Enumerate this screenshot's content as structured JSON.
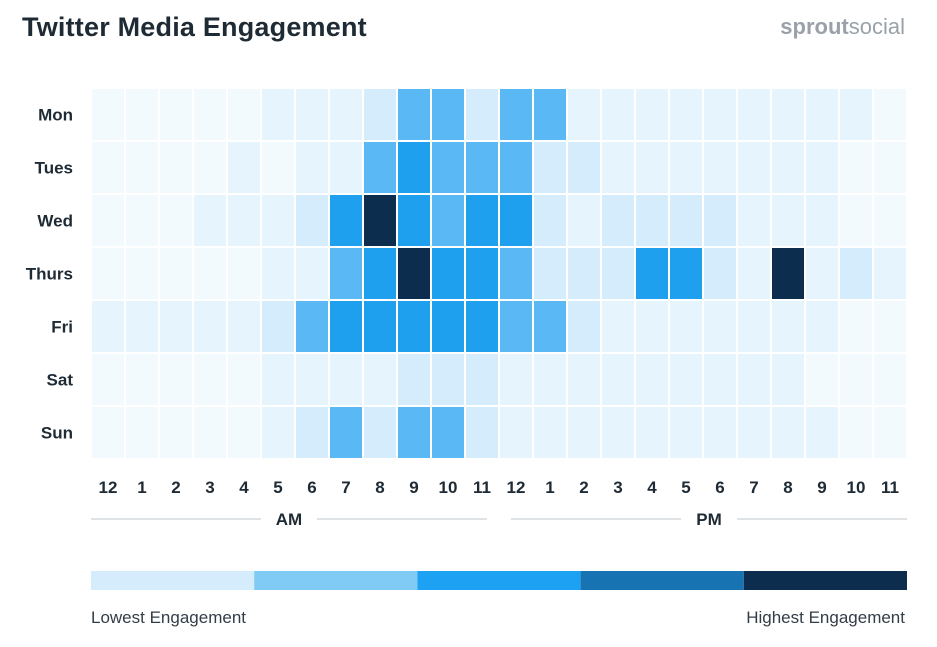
{
  "title": "Twitter Media Engagement",
  "brand": {
    "bold": "sprout",
    "light": "social"
  },
  "chart_data": {
    "type": "heatmap",
    "rows": [
      "Mon",
      "Tues",
      "Wed",
      "Thurs",
      "Fri",
      "Sat",
      "Sun"
    ],
    "columns": [
      "12",
      "1",
      "2",
      "3",
      "4",
      "5",
      "6",
      "7",
      "8",
      "9",
      "10",
      "11",
      "12",
      "1",
      "2",
      "3",
      "4",
      "5",
      "6",
      "7",
      "8",
      "9",
      "10",
      "11"
    ],
    "column_groups": [
      {
        "label": "AM",
        "span": 12
      },
      {
        "label": "PM",
        "span": 12
      }
    ],
    "values": [
      [
        0.0,
        0.0,
        0.0,
        0.0,
        0.2,
        0.4,
        0.7,
        0.7,
        1.3,
        2.0,
        2.0,
        1.3,
        2.0,
        2.0,
        0.7,
        0.7,
        0.7,
        0.4,
        0.4,
        0.4,
        0.4,
        0.7,
        0.4,
        0.2
      ],
      [
        0.2,
        0.2,
        0.2,
        0.2,
        0.4,
        0.2,
        0.4,
        0.7,
        2.0,
        3.0,
        2.0,
        2.0,
        2.0,
        1.3,
        1.3,
        0.7,
        0.7,
        0.7,
        0.4,
        0.4,
        0.4,
        0.4,
        0.2,
        0.2
      ],
      [
        0.2,
        0.2,
        0.2,
        0.4,
        0.4,
        0.7,
        1.3,
        3.0,
        4.0,
        3.0,
        2.0,
        3.0,
        3.0,
        1.3,
        0.7,
        1.3,
        1.3,
        1.3,
        1.3,
        0.7,
        0.7,
        0.7,
        0.2,
        0.2
      ],
      [
        0.2,
        0.2,
        0.2,
        0.2,
        0.2,
        0.4,
        0.7,
        2.0,
        3.0,
        4.0,
        3.0,
        3.0,
        2.0,
        1.3,
        1.3,
        1.3,
        3.0,
        3.0,
        1.3,
        0.7,
        4.0,
        0.4,
        1.3,
        0.7
      ],
      [
        0.7,
        0.7,
        0.7,
        0.7,
        0.7,
        1.3,
        2.0,
        3.0,
        3.0,
        3.0,
        3.0,
        3.0,
        2.0,
        2.0,
        1.3,
        0.7,
        0.7,
        0.4,
        0.4,
        0.4,
        0.4,
        0.4,
        0.0,
        0.0
      ],
      [
        0.2,
        0.2,
        0.0,
        0.2,
        0.2,
        0.4,
        0.4,
        0.4,
        0.4,
        1.3,
        1.3,
        1.3,
        0.7,
        0.7,
        0.7,
        0.7,
        0.4,
        0.4,
        0.4,
        0.4,
        0.4,
        0.2,
        0.2,
        0.2
      ],
      [
        0.2,
        0.2,
        0.2,
        0.2,
        0.2,
        0.4,
        1.3,
        2.0,
        1.3,
        2.0,
        2.0,
        1.3,
        0.7,
        0.7,
        0.7,
        0.7,
        0.4,
        0.4,
        0.4,
        0.4,
        0.4,
        0.4,
        0.0,
        0.0
      ]
    ],
    "scale_min": 0,
    "scale_max": 4,
    "color_stops": [
      "#f2fafe",
      "#e5f4fd",
      "#d4ecfb",
      "#a6d8f8",
      "#5ab9f5",
      "#1ea0ef",
      "#1873b2",
      "#0c2d4d"
    ],
    "legend_colors": [
      "#d4ecfb",
      "#7fcbf6",
      "#1da1f2",
      "#1873b2",
      "#0c2d4d"
    ],
    "legend_low": "Lowest Engagement",
    "legend_high": "Highest Engagement",
    "grid": true,
    "legend_placement": "bottom"
  }
}
